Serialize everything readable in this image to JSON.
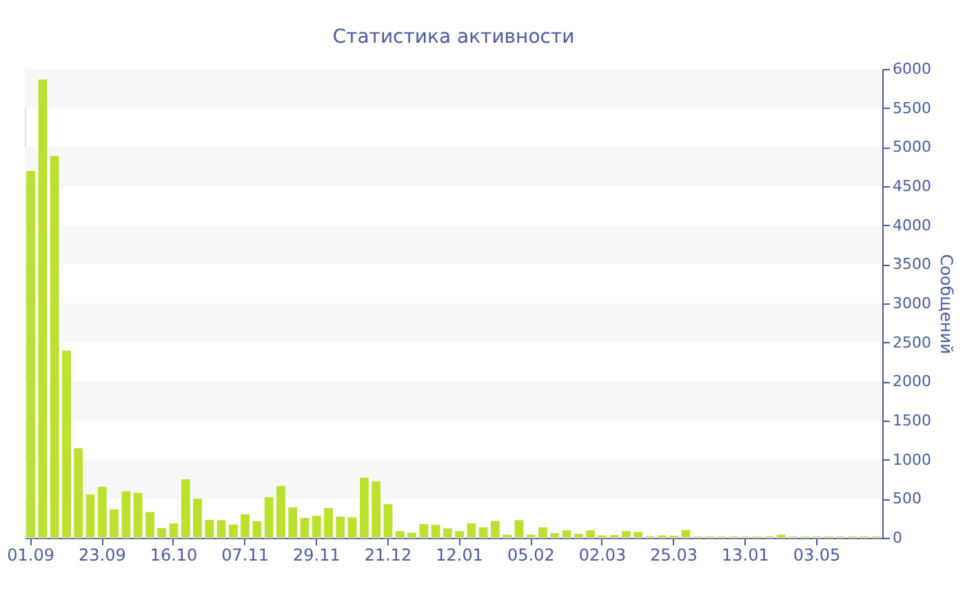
{
  "chart_data": {
    "type": "bar",
    "title": "Статистика активности",
    "ylabel": "Сообщений",
    "categories": [
      "01.09",
      null,
      null,
      null,
      null,
      null,
      "23.09",
      null,
      null,
      null,
      null,
      null,
      "16.10",
      null,
      null,
      null,
      null,
      null,
      "07.11",
      null,
      null,
      null,
      null,
      null,
      "29.11",
      null,
      null,
      null,
      null,
      null,
      "21.12",
      null,
      null,
      null,
      null,
      null,
      "12.01",
      null,
      null,
      null,
      null,
      null,
      "05.02",
      null,
      null,
      null,
      null,
      null,
      "02.03",
      null,
      null,
      null,
      null,
      null,
      "25.03",
      null,
      null,
      null,
      null,
      null,
      "13.01",
      null,
      null,
      null,
      null,
      null,
      "03.05",
      null,
      null,
      null,
      null,
      null
    ],
    "series": [
      {
        "color": "#bbe02e",
        "values": [
          4700,
          5870,
          4890,
          2400,
          1150,
          560,
          660,
          370,
          600,
          580,
          335,
          130,
          190,
          755,
          505,
          235,
          230,
          175,
          305,
          217,
          525,
          670,
          395,
          260,
          285,
          385,
          275,
          265,
          775,
          725,
          435,
          90,
          70,
          180,
          170,
          125,
          90,
          190,
          140,
          220,
          45,
          230,
          45,
          140,
          65,
          100,
          55,
          100,
          35,
          40,
          90,
          80,
          25,
          35,
          30,
          105,
          20,
          20,
          20,
          20,
          20,
          20,
          20,
          45,
          20,
          20,
          20,
          20,
          20,
          20,
          20,
          20
        ]
      }
    ],
    "ylim": [
      0,
      6000
    ],
    "yticks": [
      0,
      500,
      1000,
      1500,
      2000,
      2500,
      3000,
      3500,
      4000,
      4500,
      5000,
      5500,
      6000
    ],
    "bands": [
      {
        "axis": "y",
        "from": 500,
        "to": 1000,
        "color": "#f7f7f7"
      },
      {
        "axis": "y",
        "from": 1500,
        "to": 2000,
        "color": "#f7f7f7"
      },
      {
        "axis": "y",
        "from": 2500,
        "to": 3000,
        "color": "#f7f7f7"
      },
      {
        "axis": "y",
        "from": 3500,
        "to": 4000,
        "color": "#f7f7f7"
      },
      {
        "axis": "y",
        "from": 4500,
        "to": 5000,
        "color": "#f7f7f7"
      },
      {
        "axis": "y",
        "from": 5500,
        "to": 6000,
        "color": "#f7f7f7"
      }
    ],
    "grid": false
  }
}
